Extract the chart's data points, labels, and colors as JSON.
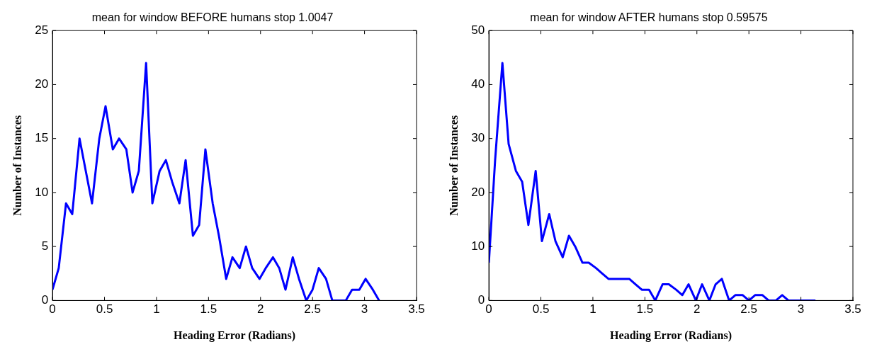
{
  "chart_data": [
    {
      "type": "line",
      "title": "mean for window BEFORE humans stop 1.0047",
      "xlabel": "Heading Error (Radians)",
      "ylabel": "Number of Instances",
      "x": [
        0,
        0.06,
        0.13,
        0.19,
        0.26,
        0.32,
        0.38,
        0.45,
        0.51,
        0.58,
        0.64,
        0.71,
        0.77,
        0.83,
        0.9,
        0.96,
        1.03,
        1.09,
        1.15,
        1.22,
        1.28,
        1.35,
        1.41,
        1.47,
        1.54,
        1.6,
        1.67,
        1.73,
        1.8,
        1.86,
        1.92,
        1.99,
        2.05,
        2.12,
        2.18,
        2.24,
        2.31,
        2.37,
        2.44,
        2.5,
        2.56,
        2.63,
        2.69,
        2.76,
        2.82,
        2.88,
        2.95,
        3.01,
        3.08,
        3.14
      ],
      "series": [
        {
          "color": "#0000ff",
          "values": [
            1,
            3,
            9,
            8,
            15,
            12,
            9,
            15,
            18,
            14,
            15,
            14,
            10,
            12,
            22,
            9,
            12,
            13,
            11,
            9,
            13,
            6,
            7,
            14,
            9,
            6,
            2,
            4,
            3,
            5,
            3,
            2,
            3,
            4,
            3,
            1,
            4,
            2,
            0,
            1,
            3,
            2,
            0,
            0,
            0,
            1,
            1,
            2,
            1,
            0
          ]
        }
      ],
      "xlim": [
        0,
        3.5
      ],
      "xticks": [
        0,
        0.5,
        1,
        1.5,
        2,
        2.5,
        3,
        3.5
      ],
      "ylim": [
        0,
        25
      ],
      "yticks": [
        0,
        5,
        10,
        15,
        20,
        25
      ],
      "grid": false,
      "legend": false,
      "marker": "none",
      "line_style": "solid"
    },
    {
      "type": "line",
      "title": "mean for window AFTER humans stop 0.59575",
      "xlabel": "Heading Error (Radians)",
      "ylabel": "Number of Instances",
      "x": [
        0,
        0.06,
        0.13,
        0.19,
        0.26,
        0.32,
        0.38,
        0.45,
        0.51,
        0.58,
        0.64,
        0.71,
        0.77,
        0.83,
        0.9,
        0.96,
        1.03,
        1.09,
        1.15,
        1.22,
        1.28,
        1.35,
        1.41,
        1.47,
        1.54,
        1.6,
        1.67,
        1.73,
        1.8,
        1.86,
        1.92,
        1.99,
        2.05,
        2.12,
        2.18,
        2.24,
        2.31,
        2.37,
        2.44,
        2.5,
        2.56,
        2.63,
        2.69,
        2.76,
        2.82,
        2.88,
        2.95,
        3.01,
        3.08,
        3.14
      ],
      "series": [
        {
          "color": "#0000ff",
          "values": [
            7,
            26,
            44,
            29,
            24,
            22,
            14,
            24,
            11,
            16,
            11,
            8,
            12,
            10,
            7,
            7,
            6,
            5,
            4,
            4,
            4,
            4,
            3,
            2,
            2,
            0,
            3,
            3,
            2,
            1,
            3,
            0,
            3,
            0,
            3,
            4,
            0,
            1,
            1,
            0,
            1,
            1,
            0,
            0,
            1,
            0,
            0,
            0,
            0,
            0
          ]
        }
      ],
      "xlim": [
        0,
        3.5
      ],
      "xticks": [
        0,
        0.5,
        1,
        1.5,
        2,
        2.5,
        3,
        3.5
      ],
      "ylim": [
        0,
        50
      ],
      "yticks": [
        0,
        10,
        20,
        30,
        40,
        50
      ],
      "grid": false,
      "legend": false,
      "marker": "none",
      "line_style": "solid"
    }
  ]
}
